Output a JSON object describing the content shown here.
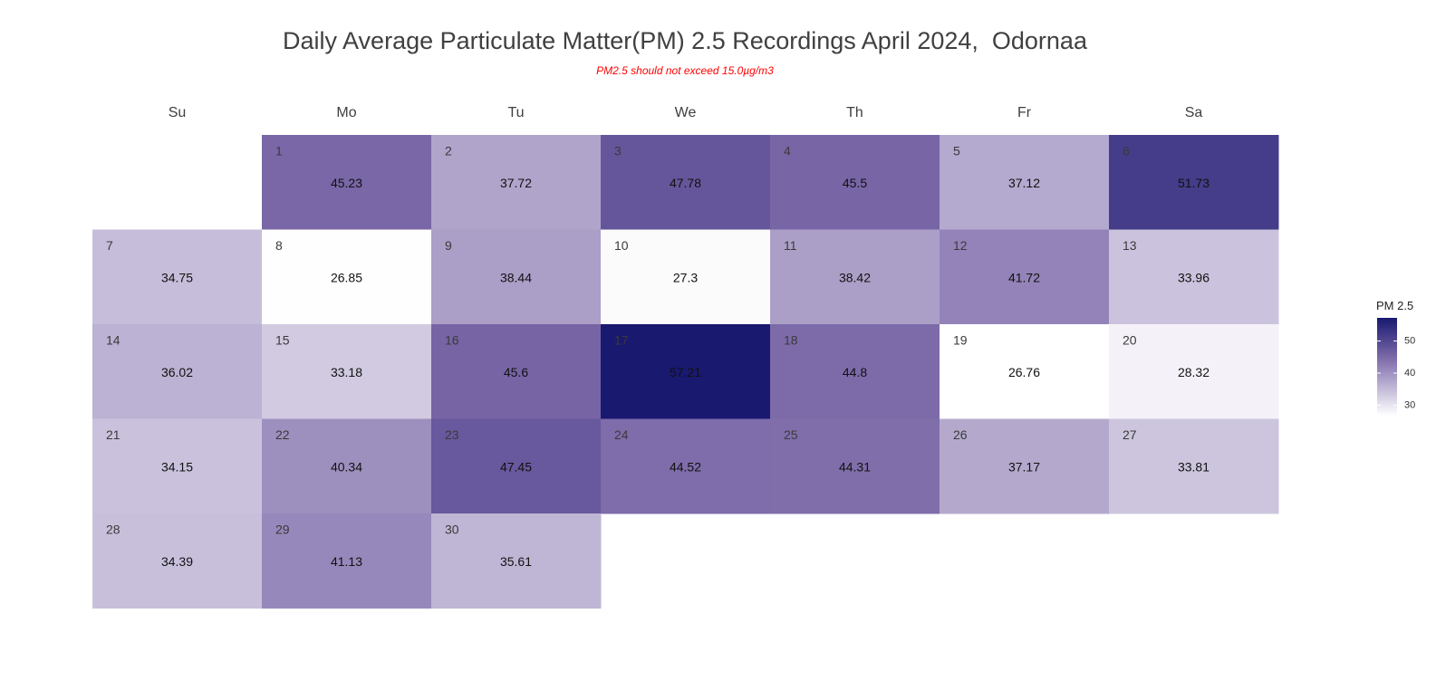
{
  "chart_data": {
    "type": "heatmap",
    "title": "Daily Average Particulate Matter(PM) 2.5 Recordings April 2024,  Odornaa",
    "subtitle": "PM2.5 should not exceed 15.0µg/m3",
    "weekdays": [
      "Su",
      "Mo",
      "Tu",
      "We",
      "Th",
      "Fr",
      "Sa"
    ],
    "first_weekday_index": 1,
    "days": [
      1,
      2,
      3,
      4,
      5,
      6,
      7,
      8,
      9,
      10,
      11,
      12,
      13,
      14,
      15,
      16,
      17,
      18,
      19,
      20,
      21,
      22,
      23,
      24,
      25,
      26,
      27,
      28,
      29,
      30
    ],
    "values": [
      45.23,
      37.72,
      47.78,
      45.5,
      37.12,
      51.73,
      34.75,
      26.85,
      38.44,
      27.3,
      38.42,
      41.72,
      33.96,
      36.02,
      33.18,
      45.6,
      57.21,
      44.8,
      26.76,
      28.32,
      34.15,
      40.34,
      47.45,
      44.52,
      44.31,
      37.17,
      33.81,
      34.39,
      41.13,
      35.61
    ],
    "legend": {
      "title": "PM 2.5",
      "ticks": [
        30,
        40,
        50
      ],
      "range": [
        26.76,
        57.21
      ]
    },
    "colors": {
      "low": "#ffffff",
      "mid": "#7b68a8",
      "high": "#191970"
    }
  }
}
